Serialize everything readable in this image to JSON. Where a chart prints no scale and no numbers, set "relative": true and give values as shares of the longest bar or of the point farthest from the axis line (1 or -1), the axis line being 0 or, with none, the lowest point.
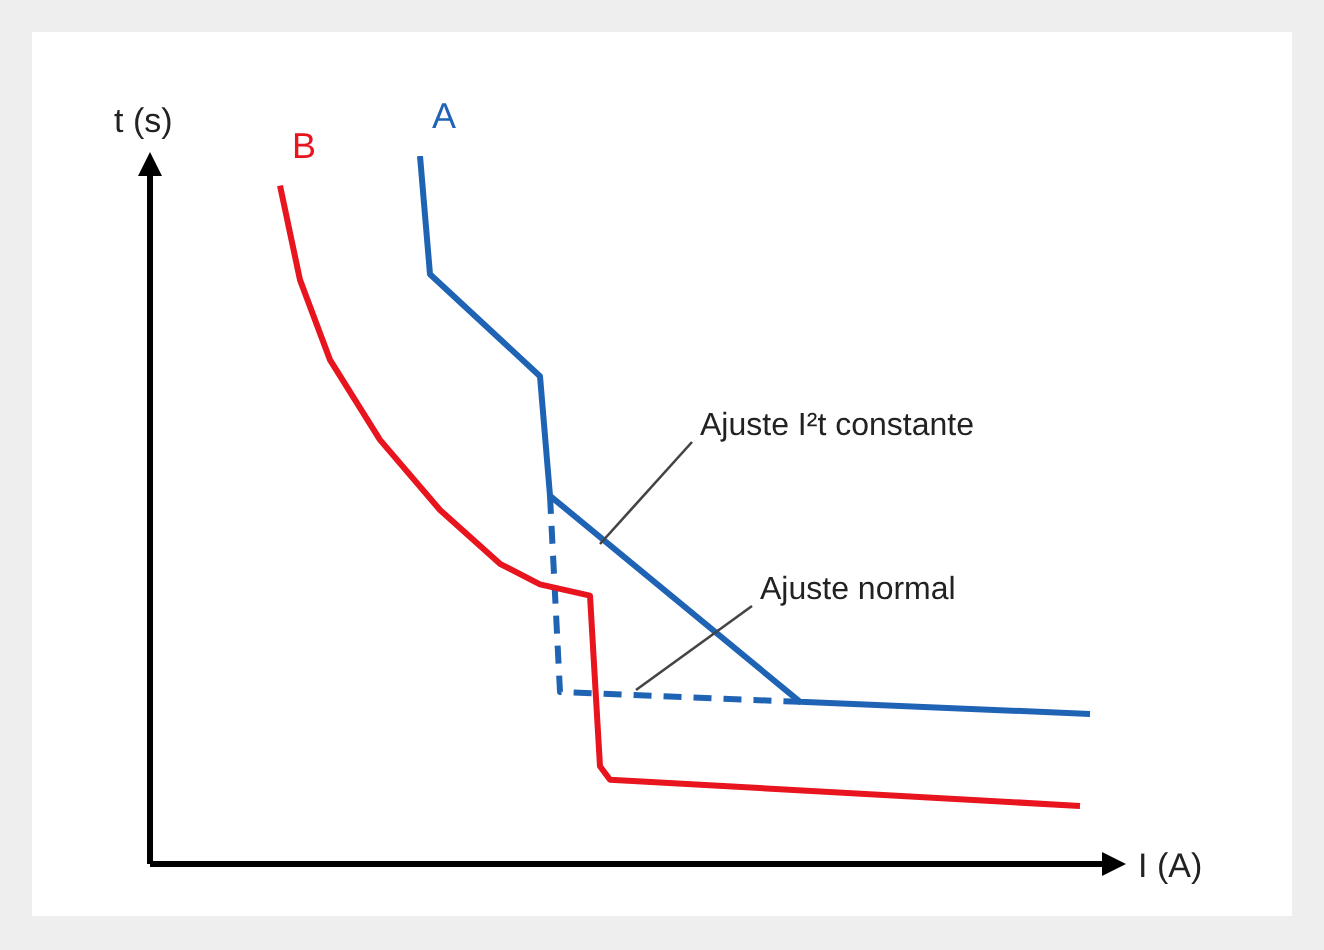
{
  "chart_data": {
    "type": "line",
    "relative": true,
    "xlabel": "I (A)",
    "ylabel": "t (s)",
    "legend": false,
    "marker": "none",
    "categories": [
      null,
      null,
      null,
      null,
      null,
      null,
      null,
      null,
      null,
      null,
      null,
      null,
      null,
      null,
      null,
      null,
      null,
      null,
      null,
      null,
      null,
      null,
      null,
      null,
      null,
      null,
      null,
      null,
      null,
      null,
      null,
      null,
      null,
      null,
      null,
      null,
      null,
      null,
      null,
      null,
      null,
      null,
      null,
      null,
      null,
      null,
      null,
      null,
      null,
      null,
      null,
      null,
      null,
      null,
      null,
      null,
      null,
      null,
      null,
      null,
      null,
      null,
      null,
      null,
      null,
      null,
      null,
      null,
      null,
      null,
      null,
      null,
      null,
      null,
      null,
      null,
      null,
      null,
      null,
      null,
      null,
      null,
      null,
      null,
      null,
      null,
      null,
      null,
      null,
      null,
      null,
      null,
      null,
      null,
      null,
      null,
      null
    ],
    "series": [
      {
        "name": "A",
        "color": "#1f64b4",
        "line_style": "solid",
        "values": [
          null,
          null,
          null,
          null,
          null,
          null,
          null,
          null,
          null,
          null,
          null,
          null,
          null,
          null,
          null,
          null,
          null,
          null,
          null,
          null,
          null,
          null,
          null,
          null,
          null,
          null,
          null,
          1.0,
          0.833,
          null,
          null,
          null,
          null,
          null,
          null,
          null,
          null,
          null,
          null,
          0.689,
          0.52,
          null,
          null,
          null,
          null,
          null,
          null,
          null,
          null,
          null,
          null,
          null,
          null,
          null,
          null,
          null,
          null,
          null,
          null,
          null,
          null,
          null,
          null,
          null,
          null,
          0.229,
          null,
          null,
          null,
          null,
          null,
          null,
          null,
          null,
          null,
          null,
          null,
          null,
          null,
          null,
          null,
          null,
          null,
          null,
          null,
          null,
          null,
          null,
          null,
          null,
          null,
          null,
          null,
          null,
          0.212,
          null,
          null
        ]
      },
      {
        "name": "B",
        "color": "#e8141e",
        "line_style": "solid",
        "values": [
          null,
          null,
          null,
          null,
          null,
          null,
          null,
          null,
          null,
          null,
          null,
          null,
          null,
          0.958,
          null,
          0.825,
          null,
          null,
          0.712,
          null,
          null,
          null,
          null,
          0.599,
          null,
          null,
          null,
          null,
          null,
          0.5,
          null,
          null,
          null,
          null,
          null,
          0.424,
          null,
          null,
          null,
          0.395,
          null,
          null,
          null,
          null,
          0.379,
          0.138,
          0.119,
          null,
          null,
          null,
          null,
          null,
          null,
          null,
          null,
          null,
          null,
          null,
          null,
          null,
          null,
          null,
          null,
          null,
          null,
          null,
          null,
          null,
          null,
          null,
          null,
          null,
          null,
          null,
          null,
          null,
          null,
          null,
          null,
          null,
          null,
          null,
          null,
          null,
          null,
          null,
          null,
          null,
          null,
          null,
          null,
          null,
          null,
          0.082,
          null,
          null,
          null
        ]
      },
      {
        "color": "#1f64b4",
        "line_style": "dashed",
        "values": [
          null,
          null,
          null,
          null,
          null,
          null,
          null,
          null,
          null,
          null,
          null,
          null,
          null,
          null,
          null,
          null,
          null,
          null,
          null,
          null,
          null,
          null,
          null,
          null,
          null,
          null,
          null,
          null,
          null,
          null,
          null,
          null,
          null,
          null,
          null,
          null,
          null,
          null,
          null,
          null,
          0.52,
          0.243,
          null,
          null,
          null,
          null,
          null,
          null,
          null,
          null,
          null,
          null,
          null,
          null,
          null,
          null,
          null,
          null,
          null,
          null,
          null,
          null,
          null,
          null,
          null,
          0.229,
          null,
          null,
          null,
          null,
          null,
          null,
          null,
          null,
          null,
          null,
          null,
          null,
          null,
          null,
          null,
          null,
          null,
          null,
          null,
          null,
          null,
          null,
          null,
          null,
          null,
          null,
          null,
          null,
          null,
          null,
          null
        ]
      }
    ],
    "annotations": [
      "Ajuste I²t constante",
      "Ajuste normal"
    ]
  }
}
